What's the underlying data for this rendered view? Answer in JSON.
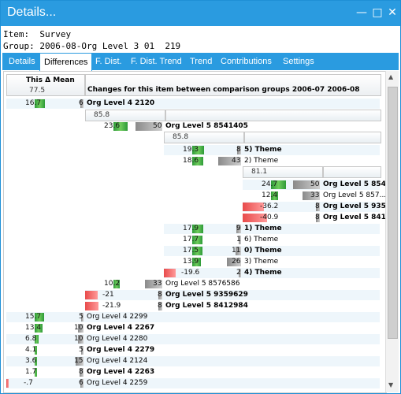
{
  "window": {
    "title": "Details...",
    "min_icon": "minimize-icon",
    "max_icon": "maximize-icon",
    "close_icon": "close-icon"
  },
  "info": {
    "item_label": "Item:",
    "item_value": "Survey",
    "group_label": "Group:",
    "group_value": "2006-08-Org Level 3 01  219"
  },
  "tabs": [
    "Details",
    "Differences",
    "F. Dist.",
    "F. Dist. Trend",
    "Trend",
    "Contributions",
    "Settings"
  ],
  "header": {
    "col1_title": "This Δ Mean",
    "col1_value": "77.5",
    "col2_title": "Changes for this item between comparison groups 2006-07 2006-08"
  },
  "subheads": [
    "85.8",
    "85.8",
    "81.1"
  ],
  "rows": [
    {
      "v": "16.7",
      "type": "green",
      "count": "6",
      "label": "Org Level 4 2120",
      "bold": true
    },
    {
      "v": "23.6",
      "type": "green",
      "count": "50",
      "label": "Org Level 5 8541405",
      "bold": true
    },
    {
      "v": "19.3",
      "type": "green",
      "count": "8",
      "label": "5) Theme",
      "bold": true
    },
    {
      "v": "18.6",
      "type": "green",
      "count": "43",
      "label": "2) Theme",
      "bold": false
    },
    {
      "v": "24.7",
      "type": "green",
      "count": "50",
      "label": "Org Level 5 854...",
      "bold": true
    },
    {
      "v": "12.4",
      "type": "green",
      "count": "33",
      "label": "Org Level 5 857...",
      "bold": false
    },
    {
      "v": "-36.2",
      "type": "red",
      "count": "8",
      "label": "Org Level 5 935...",
      "bold": true
    },
    {
      "v": "-40.9",
      "type": "red",
      "count": "8",
      "label": "Org Level 5 841...",
      "bold": true
    },
    {
      "v": "17.9",
      "type": "green",
      "count": "9",
      "label": "1) Theme",
      "bold": true
    },
    {
      "v": "17.7",
      "type": "green",
      "count": "1",
      "label": "6) Theme",
      "bold": false
    },
    {
      "v": "17.5",
      "type": "green",
      "count": "11",
      "label": "0) Theme",
      "bold": true
    },
    {
      "v": "13.9",
      "type": "green",
      "count": "26",
      "label": "3) Theme",
      "bold": false
    },
    {
      "v": "-19.6",
      "type": "red",
      "count": "2",
      "label": "4) Theme",
      "bold": true
    },
    {
      "v": "10.2",
      "type": "green",
      "count": "33",
      "label": "Org Level 5 8576586",
      "bold": false
    },
    {
      "v": "-21",
      "type": "red",
      "count": "8",
      "label": "Org Level 5 9359629",
      "bold": true
    },
    {
      "v": "-21.9",
      "type": "red",
      "count": "8",
      "label": "Org Level 5 8412984",
      "bold": true
    },
    {
      "v": "15.7",
      "type": "green",
      "count": "5",
      "label": "Org Level 4 2299",
      "bold": false
    },
    {
      "v": "13.4",
      "type": "green",
      "count": "10",
      "label": "Org Level 4 2267",
      "bold": true
    },
    {
      "v": "6.8",
      "type": "green",
      "count": "10",
      "label": "Org Level 4 2280",
      "bold": false
    },
    {
      "v": "4.1",
      "type": "green",
      "count": "5",
      "label": "Org Level 4 2279",
      "bold": true
    },
    {
      "v": "3.6",
      "type": "green",
      "count": "15",
      "label": "Org Level 4 2124",
      "bold": false
    },
    {
      "v": "1.7",
      "type": "green",
      "count": "8",
      "label": "Org Level 4 2263",
      "bold": true
    },
    {
      "v": "-.7",
      "type": "red",
      "count": "6",
      "label": "Org Level 4 2259",
      "bold": false
    }
  ],
  "colors": {
    "accent": "#2a9be0",
    "positive": "#3aa640",
    "negative": "#e85050",
    "neutral": "#a0a0a0"
  }
}
